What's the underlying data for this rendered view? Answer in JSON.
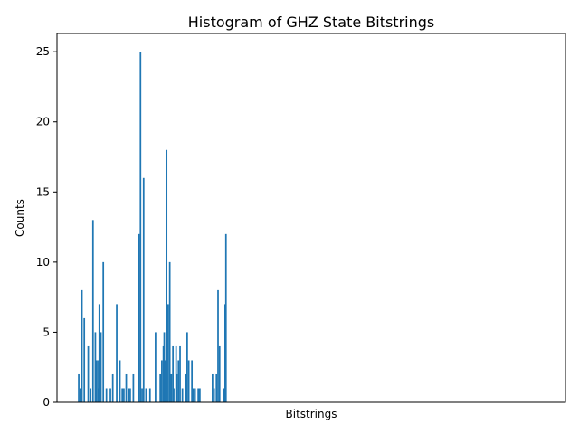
{
  "chart_data": {
    "type": "bar",
    "title": "Histogram of GHZ State Bitstrings",
    "xlabel": "Bitstrings",
    "ylabel": "Counts",
    "ylim": [
      0,
      26.3
    ],
    "yticks": [
      0,
      5,
      10,
      15,
      20,
      25
    ],
    "xticks_shown": false,
    "grid": false,
    "bar_color": "#1f77b4",
    "x": [
      1,
      1.4,
      1.8,
      2.4,
      3.4,
      4.0,
      4.6,
      5.2,
      5.4,
      5.8,
      6.0,
      6.2,
      6.6,
      7.2,
      8.0,
      9.0,
      9.6,
      10.6,
      11.4,
      12.0,
      12.4,
      13.0,
      13.6,
      14.0,
      14.8,
      16.2,
      16.6,
      17.0,
      17.4,
      18.0,
      19.0,
      20.4,
      21.6,
      22.0,
      22.4,
      22.6,
      22.8,
      23.2,
      23.6,
      24.0,
      24.4,
      24.8,
      25.0,
      25.6,
      25.8,
      26.2,
      26.6,
      27.2,
      28.0,
      28.4,
      28.8,
      29.6,
      30.0,
      30.4,
      31.2,
      31.6,
      34.8,
      35.2,
      35.8,
      36.2,
      36.6,
      37.6,
      38.0,
      38.2
    ],
    "values": [
      2,
      1,
      8,
      6,
      4,
      1,
      13,
      5,
      3,
      3,
      1,
      7,
      5,
      10,
      1,
      1,
      2,
      7,
      3,
      1,
      1,
      2,
      1,
      1,
      2,
      12,
      25,
      1,
      16,
      1,
      1,
      5,
      2,
      3,
      4,
      5,
      3,
      18,
      7,
      10,
      2,
      4,
      1,
      4,
      2,
      3,
      4,
      1,
      2,
      5,
      3,
      3,
      1,
      1,
      1,
      1,
      2,
      1,
      2,
      8,
      4,
      1,
      7,
      12
    ],
    "xlim": [
      -4.5,
      124
    ]
  }
}
